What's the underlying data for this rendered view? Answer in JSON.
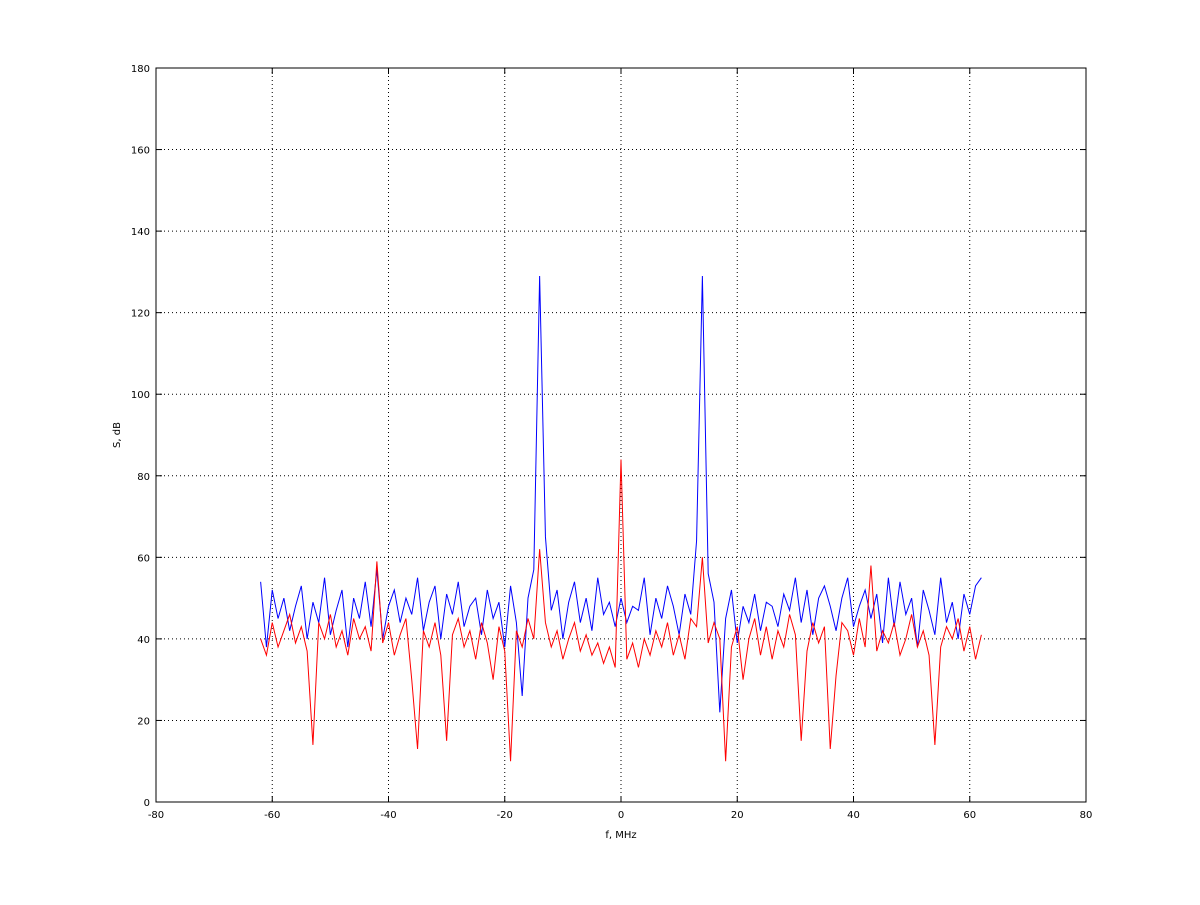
{
  "chart_data": {
    "type": "line",
    "xlabel": "f, MHz",
    "ylabel": "S, dB",
    "x": [
      -62,
      -61,
      -60,
      -59,
      -58,
      -57,
      -56,
      -55,
      -54,
      -53,
      -52,
      -51,
      -50,
      -49,
      -48,
      -47,
      -46,
      -45,
      -44,
      -43,
      -42,
      -41,
      -40,
      -39,
      -38,
      -37,
      -36,
      -35,
      -34,
      -33,
      -32,
      -31,
      -30,
      -29,
      -28,
      -27,
      -26,
      -25,
      -24,
      -23,
      -22,
      -21,
      -20,
      -19,
      -18,
      -17,
      -16,
      -15,
      -14,
      -13,
      -12,
      -11,
      -10,
      -9,
      -8,
      -7,
      -6,
      -5,
      -4,
      -3,
      -2,
      -1,
      0,
      1,
      2,
      3,
      4,
      5,
      6,
      7,
      8,
      9,
      10,
      11,
      12,
      13,
      14,
      15,
      16,
      17,
      18,
      19,
      20,
      21,
      22,
      23,
      24,
      25,
      26,
      27,
      28,
      29,
      30,
      31,
      32,
      33,
      34,
      35,
      36,
      37,
      38,
      39,
      40,
      41,
      42,
      43,
      44,
      45,
      46,
      47,
      48,
      49,
      50,
      51,
      52,
      53,
      54,
      55,
      56,
      57,
      58,
      59,
      60,
      61,
      62
    ],
    "series": [
      {
        "color": "#0000ff",
        "values": [
          54,
          38,
          52,
          45,
          50,
          42,
          48,
          53,
          40,
          49,
          44,
          55,
          41,
          47,
          52,
          38,
          50,
          45,
          54,
          43,
          57,
          40,
          48,
          52,
          44,
          50,
          46,
          55,
          42,
          49,
          53,
          40,
          51,
          46,
          54,
          43,
          48,
          50,
          41,
          52,
          45,
          49,
          38,
          53,
          44,
          26,
          50,
          57,
          129,
          65,
          47,
          52,
          40,
          49,
          54,
          44,
          50,
          42,
          55,
          46,
          49,
          43,
          50,
          44,
          48,
          47,
          55,
          41,
          50,
          45,
          53,
          48,
          41,
          51,
          46,
          64,
          129,
          56,
          49,
          22,
          45,
          52,
          39,
          48,
          44,
          51,
          42,
          49,
          48,
          43,
          51,
          47,
          55,
          44,
          52,
          41,
          50,
          53,
          48,
          42,
          50,
          55,
          43,
          48,
          52,
          45,
          51,
          39,
          55,
          43,
          54,
          46,
          50,
          38,
          52,
          47,
          41,
          55,
          44,
          49,
          40,
          51,
          46,
          53,
          55
        ]
      },
      {
        "color": "#ff0000",
        "values": [
          40,
          36,
          44,
          38,
          42,
          46,
          39,
          43,
          37,
          14,
          44,
          40,
          46,
          38,
          42,
          36,
          45,
          40,
          43,
          37,
          59,
          39,
          44,
          36,
          41,
          45,
          30,
          13,
          42,
          38,
          44,
          36,
          15,
          41,
          45,
          38,
          42,
          35,
          44,
          39,
          30,
          43,
          37,
          10,
          42,
          38,
          45,
          40,
          62,
          44,
          38,
          42,
          35,
          40,
          44,
          37,
          41,
          36,
          39,
          34,
          38,
          33,
          84,
          35,
          39,
          33,
          40,
          36,
          42,
          38,
          44,
          36,
          41,
          35,
          45,
          43,
          60,
          39,
          44,
          40,
          10,
          38,
          43,
          30,
          40,
          45,
          36,
          43,
          35,
          42,
          38,
          46,
          41,
          15,
          37,
          44,
          39,
          43,
          13,
          31,
          44,
          42,
          36,
          45,
          38,
          58,
          37,
          42,
          39,
          44,
          36,
          40,
          46,
          38,
          42,
          36,
          14,
          38,
          43,
          40,
          45,
          37,
          43,
          35,
          41
        ]
      }
    ],
    "xlim": [
      -80,
      80
    ],
    "xticks": [
      -80,
      -60,
      -40,
      -20,
      0,
      20,
      40,
      60,
      80
    ],
    "ylim": [
      0,
      180
    ],
    "yticks": [
      0,
      20,
      40,
      60,
      80,
      100,
      120,
      140,
      160,
      180
    ],
    "grid": true
  }
}
